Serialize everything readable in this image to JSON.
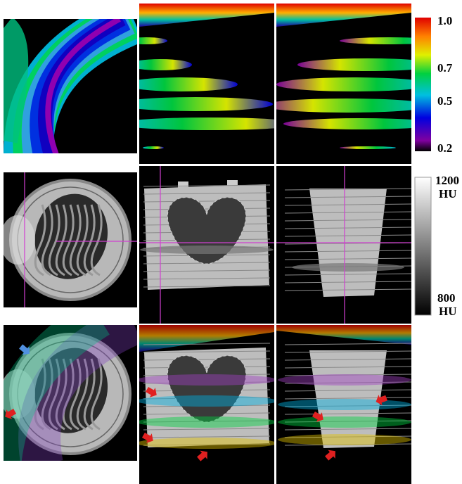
{
  "colorbar": {
    "ticks": [
      "1.0",
      "0.7",
      "0.5",
      "0.2"
    ]
  },
  "grayscale_bar": {
    "top": [
      "1200",
      "HU"
    ],
    "bottom": [
      "800",
      "HU"
    ]
  }
}
